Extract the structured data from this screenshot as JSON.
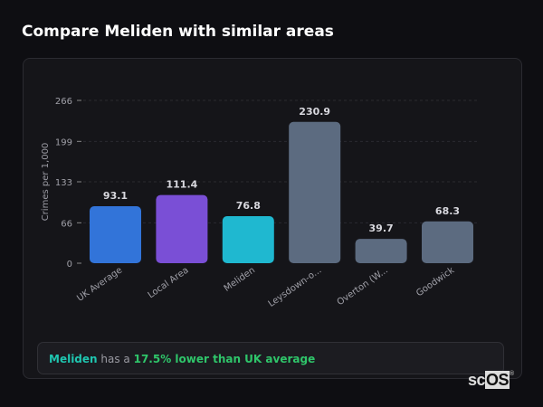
{
  "header": {
    "title": "Compare Meliden with similar areas"
  },
  "chart_data": {
    "type": "bar",
    "title": "",
    "xlabel": "",
    "ylabel": "Crimes per 1,000",
    "categories": [
      "UK Average",
      "Local Area",
      "Meliden",
      "Leysdown-o...",
      "Overton (W...",
      "Goodwick"
    ],
    "values": [
      93.1,
      111.4,
      76.8,
      230.9,
      39.7,
      68.3
    ],
    "data_labels": [
      "93.1",
      "111.4",
      "76.8",
      "230.9",
      "39.7",
      "68.3"
    ],
    "colors": [
      "#3274d9",
      "#7a4fd6",
      "#1fb8d0",
      "#5c6b80",
      "#5c6b80",
      "#5c6b80"
    ],
    "yticks": [
      0,
      66,
      133,
      199,
      266
    ],
    "ylim": [
      0,
      266
    ],
    "grid": true,
    "legend": "none"
  },
  "summary": {
    "area": "Meliden",
    "middle": " has a ",
    "comparison": "17.5% lower than UK average"
  },
  "logo": {
    "text": "scOS"
  }
}
